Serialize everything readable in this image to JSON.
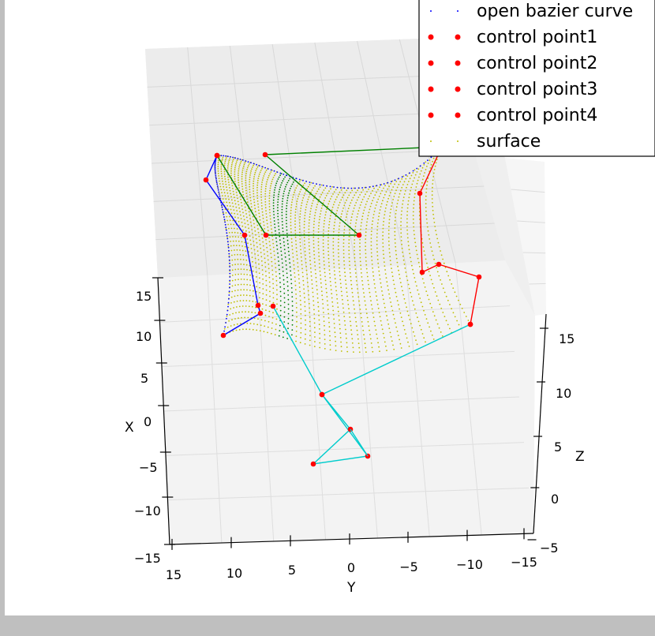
{
  "chart_data": {
    "type": "scatter",
    "projection": "3d",
    "axes": {
      "x": {
        "label": "X",
        "ticks": [
          "15",
          "10",
          "5",
          "0",
          "−5",
          "−10",
          "−15"
        ]
      },
      "y": {
        "label": "Y",
        "ticks": [
          "15",
          "10",
          "5",
          "0",
          "−5",
          "−10",
          "−15"
        ]
      },
      "z": {
        "label": "Z",
        "ticks": [
          "15",
          "10",
          "5",
          "0",
          "−5"
        ]
      }
    },
    "legend": {
      "placement": "top-right",
      "entries": [
        {
          "label": "open bazier curve",
          "color": "#0000ff",
          "marker": "dot"
        },
        {
          "label": "control point1",
          "color": "#ff0000",
          "marker": "circle"
        },
        {
          "label": "control point2",
          "color": "#ff0000",
          "marker": "circle"
        },
        {
          "label": "control point3",
          "color": "#ff0000",
          "marker": "circle"
        },
        {
          "label": "control point4",
          "color": "#ff0000",
          "marker": "circle"
        },
        {
          "label": "surface",
          "color": "#bfbf00",
          "marker": "dot"
        }
      ]
    },
    "control_polygons": [
      {
        "name": "control point1",
        "line_color": "#0000ff",
        "point_color": "#ff0000"
      },
      {
        "name": "control point2",
        "line_color": "#008000",
        "point_color": "#ff0000"
      },
      {
        "name": "control point3",
        "line_color": "#ff0000",
        "point_color": "#ff0000"
      },
      {
        "name": "control point4",
        "line_color": "#00cccc",
        "point_color": "#ff0000"
      }
    ],
    "surface_color": "#bfbf00",
    "surface_band_color": "#008000",
    "curve_color": "#0000ff",
    "grid": true
  }
}
